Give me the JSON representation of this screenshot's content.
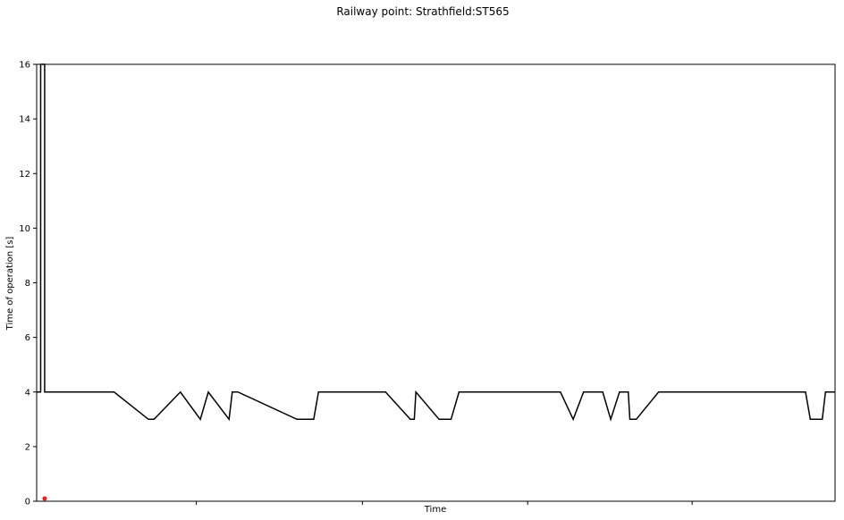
{
  "chart_data": {
    "type": "line",
    "title": "Railway point: Strathfield:ST565",
    "xlabel": "Time",
    "ylabel": "Time of operation [s]",
    "ylim": [
      0,
      16
    ],
    "yticks": [
      0,
      2,
      4,
      6,
      8,
      10,
      12,
      14,
      16
    ],
    "x_tick_labels_visible": false,
    "x_tick_count": 5,
    "grid": false,
    "legend": "none",
    "series": [
      {
        "color": "#000000",
        "points": [
          [
            0,
            4
          ],
          [
            0.5,
            4
          ],
          [
            0.5,
            16
          ],
          [
            1.0,
            16
          ],
          [
            1.0,
            4
          ],
          [
            9.7,
            4
          ],
          [
            14.0,
            3
          ],
          [
            14.7,
            3
          ],
          [
            18.0,
            4
          ],
          [
            20.5,
            3
          ],
          [
            21.5,
            4
          ],
          [
            24.1,
            3
          ],
          [
            24.5,
            4
          ],
          [
            25.2,
            4
          ],
          [
            32.6,
            3
          ],
          [
            34.7,
            3
          ],
          [
            35.3,
            4
          ],
          [
            43.7,
            4
          ],
          [
            46.8,
            3
          ],
          [
            47.3,
            3
          ],
          [
            47.5,
            4
          ],
          [
            50.4,
            3
          ],
          [
            51.9,
            3
          ],
          [
            52.9,
            4
          ],
          [
            65.6,
            4
          ],
          [
            67.2,
            3
          ],
          [
            68.5,
            4
          ],
          [
            70.9,
            4
          ],
          [
            71.9,
            3
          ],
          [
            73.0,
            4
          ],
          [
            74.1,
            4
          ],
          [
            74.3,
            3
          ],
          [
            75.1,
            3
          ],
          [
            77.9,
            4
          ],
          [
            96.3,
            4
          ],
          [
            96.9,
            3
          ],
          [
            98.4,
            3
          ],
          [
            98.8,
            4
          ],
          [
            100,
            4
          ]
        ]
      },
      {
        "type": "scatter",
        "color": "#d62728",
        "points": [
          [
            1.0,
            0.1
          ]
        ]
      }
    ]
  }
}
